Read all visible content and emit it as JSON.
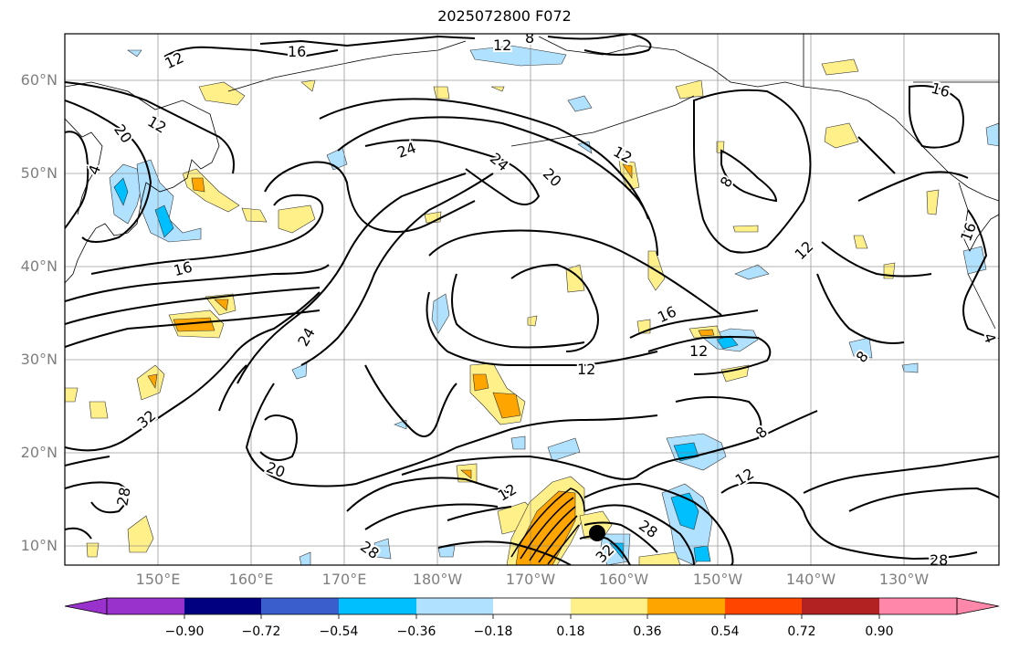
{
  "title": "2025072800 F072",
  "map": {
    "lat_labels": [
      {
        "label": "60°N",
        "value": 60
      },
      {
        "label": "50°N",
        "value": 50
      },
      {
        "label": "40°N",
        "value": 40
      },
      {
        "label": "30°N",
        "value": 30
      },
      {
        "label": "20°N",
        "value": 20
      },
      {
        "label": "10°N",
        "value": 10
      }
    ],
    "lon_labels": [
      {
        "label": "150°E",
        "value": 150
      },
      {
        "label": "160°E",
        "value": 160
      },
      {
        "label": "170°E",
        "value": 170
      },
      {
        "label": "180°W",
        "value": 180
      },
      {
        "label": "170°W",
        "value": 190
      },
      {
        "label": "160°W",
        "value": 200
      },
      {
        "label": "150°W",
        "value": 210
      },
      {
        "label": "140°W",
        "value": 220
      },
      {
        "label": "130°W",
        "value": 230
      }
    ],
    "contour_labels": [
      "12",
      "16",
      "8",
      "12",
      "16",
      "12",
      "20",
      "24",
      "24",
      "20",
      "12",
      "8",
      "16",
      "16",
      "12",
      "24",
      "16",
      "12",
      "12",
      "8",
      "32",
      "28",
      "20",
      "12",
      "8",
      "12",
      "28",
      "32",
      "28",
      "28",
      "4",
      "4"
    ],
    "tropical_cyclone_marker": {
      "lat": 11.5,
      "lon": 198
    }
  },
  "colorbar": {
    "ticks": [
      "−0.90",
      "−0.72",
      "−0.54",
      "−0.36",
      "−0.18",
      "0.18",
      "0.36",
      "0.54",
      "0.72",
      "0.90"
    ],
    "colors": {
      "under": "#9b30d0",
      "bins": [
        "#9932cc",
        "#000080",
        "#3a5fcd",
        "#00bfff",
        "#b0e2ff",
        "#ffffff",
        "#fff08a",
        "#ffa500",
        "#ff4500",
        "#b22222",
        "#ff88aa"
      ],
      "over": "#ff88aa"
    }
  }
}
